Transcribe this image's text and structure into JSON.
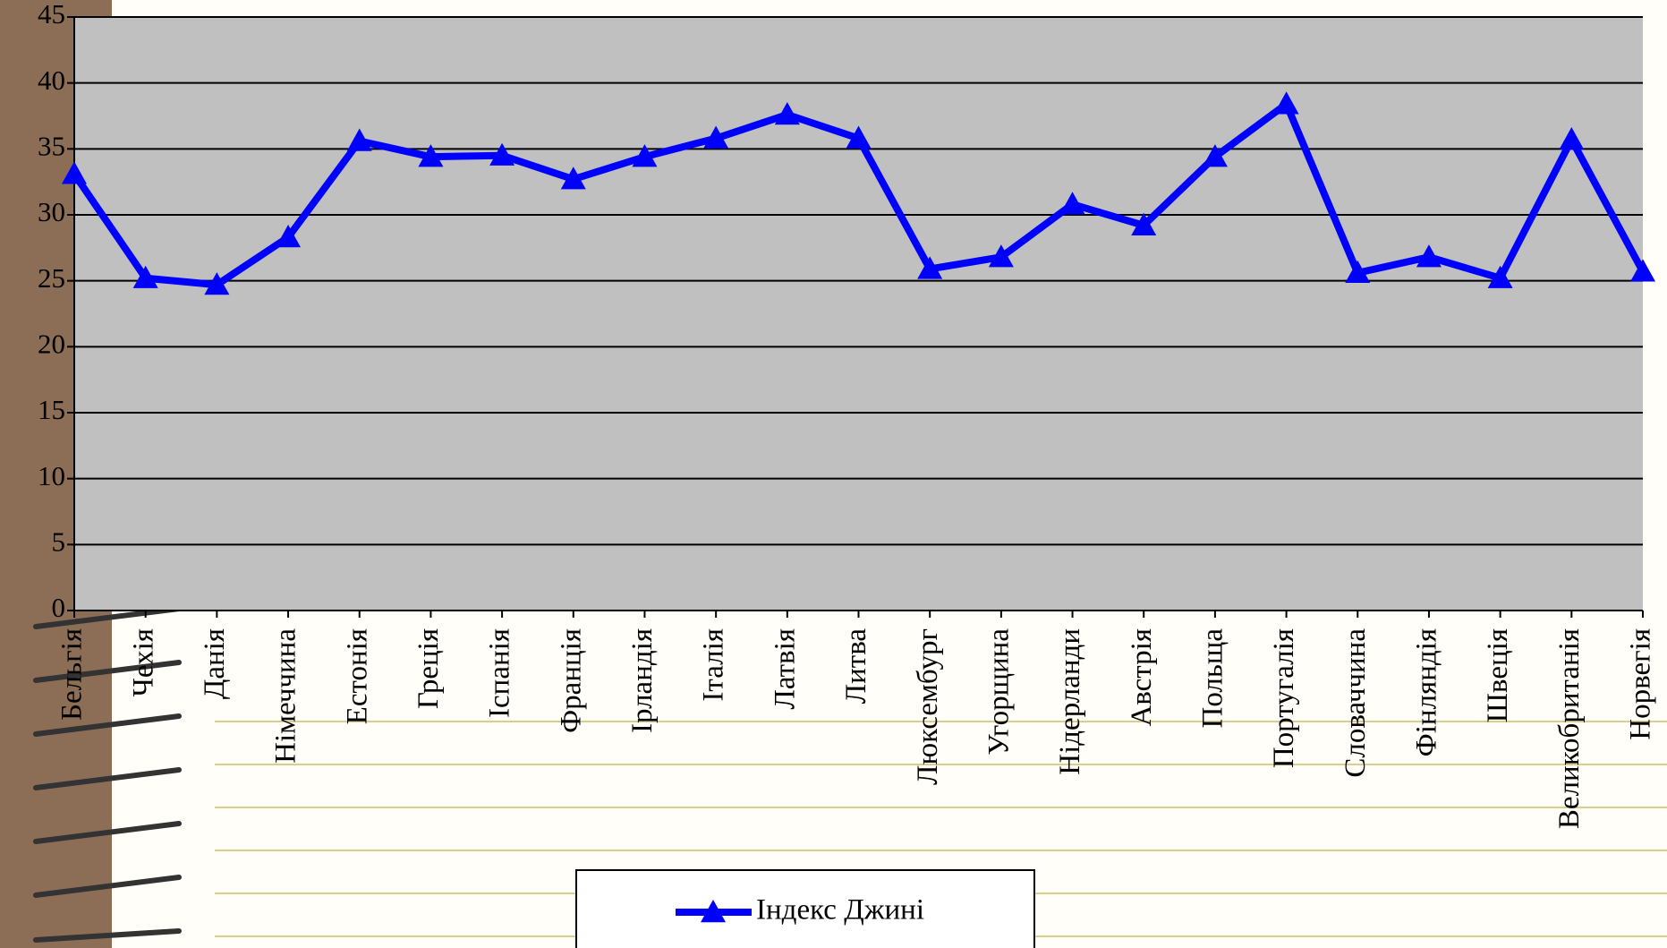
{
  "chart_data": {
    "type": "line",
    "categories": [
      "Бельгія",
      "Чехія",
      "Данія",
      "Німеччина",
      "Естонія",
      "Греція",
      "Іспанія",
      "Франція",
      "Ірландія",
      "Італія",
      "Латвія",
      "Литва",
      "Люксембург",
      "Угорщина",
      "Нідерланди",
      "Австрія",
      "Польща",
      "Португалія",
      "Словаччина",
      "Фінляндія",
      "Швеція",
      "Великобританія",
      "Норвегія"
    ],
    "series": [
      {
        "name": "Індекс Джині",
        "color": "#0000ff",
        "values": [
          33.1,
          25.2,
          24.7,
          28.3,
          35.6,
          34.4,
          34.5,
          32.7,
          34.4,
          35.8,
          37.6,
          35.8,
          25.9,
          26.8,
          30.8,
          29.2,
          34.4,
          38.4,
          25.6,
          26.8,
          25.2,
          35.7,
          25.7
        ]
      }
    ],
    "ylim": [
      0,
      45
    ],
    "yticks": [
      0,
      5,
      10,
      15,
      20,
      25,
      30,
      35,
      40,
      45
    ],
    "grid": true,
    "legend": "bottom"
  }
}
